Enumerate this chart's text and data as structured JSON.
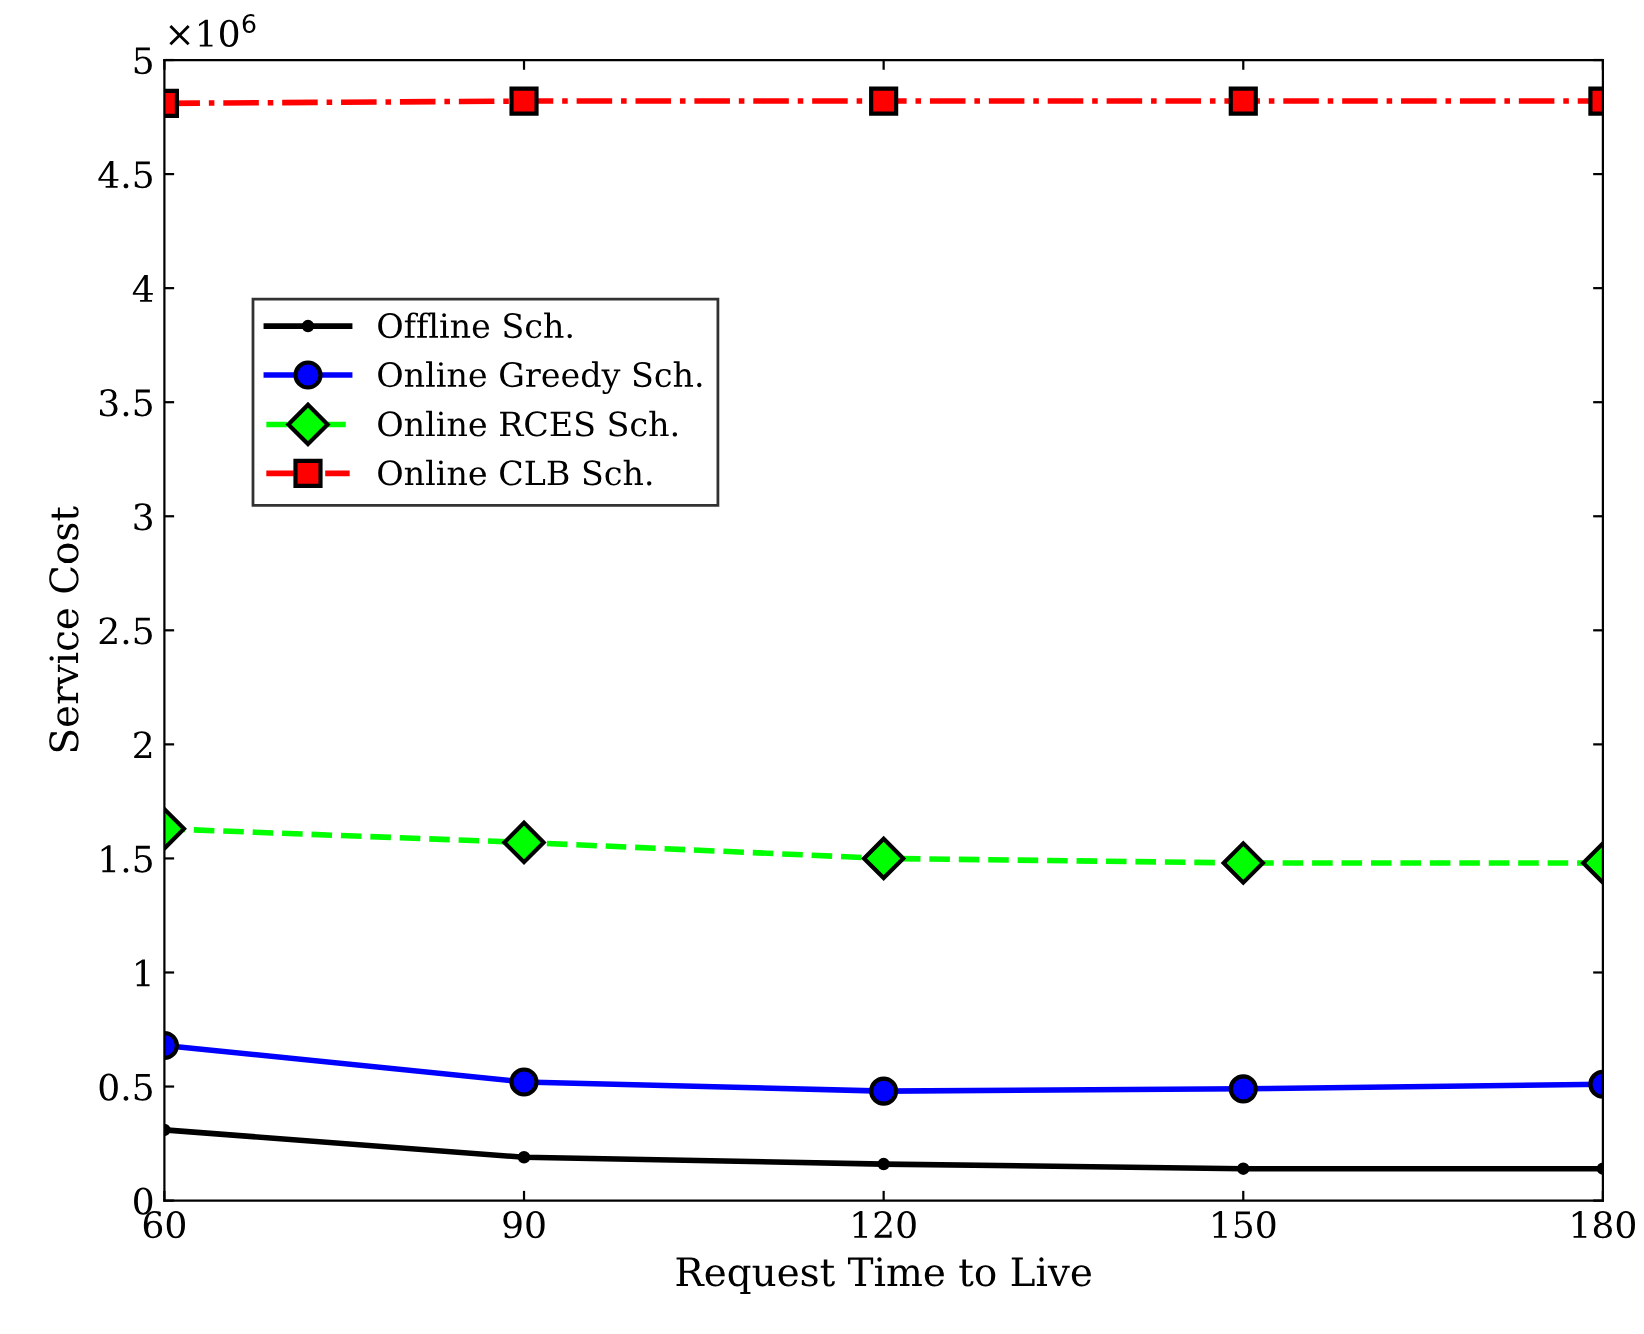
{
  "chart_data": {
    "type": "line",
    "xlabel": "Request Time to Live",
    "ylabel": "Service Cost",
    "x": [
      60,
      90,
      120,
      150,
      180
    ],
    "xlim": [
      60,
      180
    ],
    "xticks": [
      60,
      90,
      120,
      150,
      180
    ],
    "ylim": [
      0,
      5
    ],
    "yticks": [
      0,
      0.5,
      1,
      1.5,
      2,
      2.5,
      3,
      3.5,
      4,
      4.5,
      5
    ],
    "annotations": [
      "×10$^{6}$"
    ],
    "legend": "center left",
    "grid": false,
    "series": [
      {
        "name": "Offline Sch.",
        "color": "#000000",
        "marker": "circle",
        "line_style": "solid",
        "values": [
          0.31,
          0.19,
          0.16,
          0.14,
          0.14
        ]
      },
      {
        "name": "Online Greedy Sch.",
        "color": "#0000ff",
        "marker": "circle",
        "line_style": "solid",
        "values": [
          0.68,
          0.52,
          0.48,
          0.49,
          0.51
        ]
      },
      {
        "name": "Online RCES Sch.",
        "color": "#00ff00",
        "marker": "diamond",
        "line_style": "dashed",
        "values": [
          1.63,
          1.57,
          1.5,
          1.48,
          1.48
        ]
      },
      {
        "name": "Online CLB Sch.",
        "color": "#ff0000",
        "marker": "square",
        "line_style": "dashdot",
        "values": [
          4.81,
          4.82,
          4.82,
          4.82,
          4.82
        ]
      }
    ]
  }
}
